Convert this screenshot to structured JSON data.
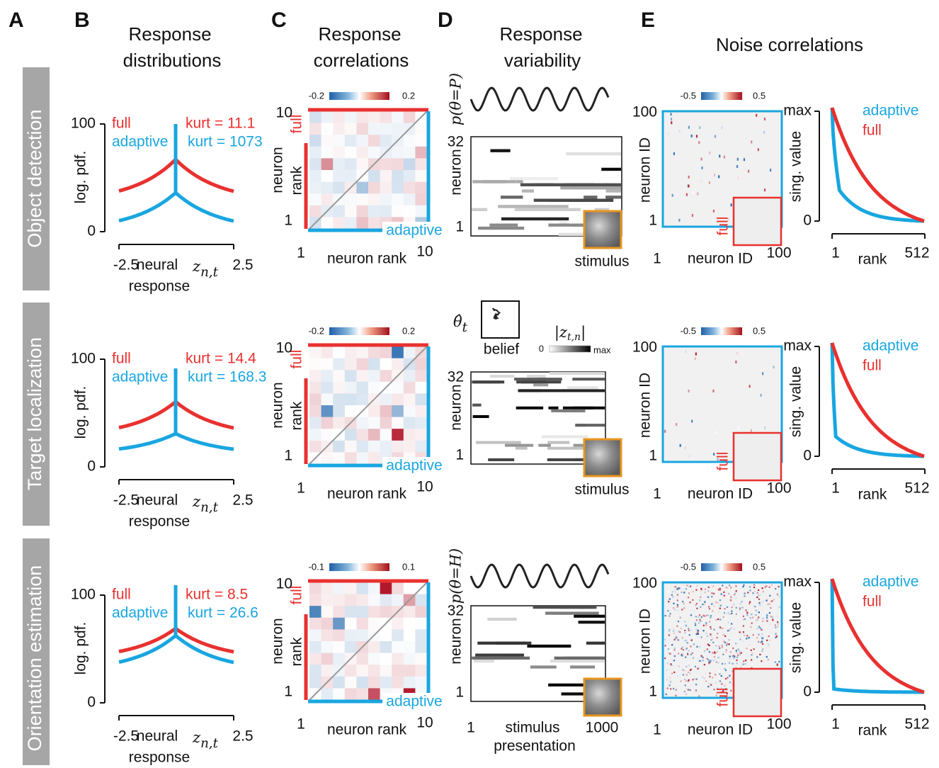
{
  "figure": {
    "panels": [
      "A",
      "B",
      "C",
      "D",
      "E"
    ],
    "titles": {
      "B": [
        "Response",
        "distributions"
      ],
      "C": [
        "Response",
        "correlations"
      ],
      "D": [
        "Response",
        "variability"
      ],
      "E": [
        "Noise correlations"
      ]
    },
    "rows": [
      {
        "task": "Object detection",
        "distributions": {
          "full": "full",
          "adaptive": "adaptive",
          "kurt_full": "kurt = 11.1",
          "kurt_adaptive": "kurt = 1073",
          "yticks": [
            100,
            0
          ],
          "ylabel": "log. pdf.",
          "xticks": [
            -2.5,
            2.5
          ],
          "xlabel": [
            "neural",
            "response"
          ],
          "symbol": {
            "base": "z",
            "sub": "n,t"
          }
        },
        "correlations": {
          "colorbar": [
            -0.2,
            0.2
          ],
          "full": "full",
          "adaptive": "adaptive",
          "yticks": [
            10,
            1
          ],
          "ylabel": [
            "neuron",
            "rank"
          ],
          "xticks": [
            1,
            10
          ],
          "xlabel": "neuron rank"
        },
        "variability": {
          "prior": "p(θ=P)",
          "yticks": [
            32,
            1
          ],
          "ylabel": "neuron",
          "image_label": "stimulus"
        },
        "noise": {
          "colorbar": [
            -0.5,
            0.5
          ],
          "inset_label": "full",
          "yticks": [
            100,
            1
          ],
          "ylabel": "neuron ID",
          "xticks": [
            1,
            100
          ],
          "xlabel": "neuron ID",
          "sv": {
            "yticks": [
              "max",
              0
            ],
            "ylabel": "sing. value",
            "legend": [
              "adaptive",
              "full"
            ],
            "xticks": [
              1,
              512
            ],
            "xlabel": "rank"
          }
        }
      },
      {
        "task": "Target localization",
        "distributions": {
          "full": "full",
          "adaptive": "adaptive",
          "kurt_full": "kurt = 14.4",
          "kurt_adaptive": "kurt = 168.3",
          "yticks": [
            100,
            0
          ],
          "ylabel": "log. pdf.",
          "xticks": [
            -2.5,
            2.5
          ],
          "xlabel": [
            "neural",
            "response"
          ],
          "symbol": {
            "base": "z",
            "sub": "n,t"
          }
        },
        "correlations": {
          "colorbar": [
            -0.2,
            0.2
          ],
          "full": "full",
          "adaptive": "adaptive",
          "yticks": [
            10,
            1
          ],
          "ylabel": [
            "neuron",
            "rank"
          ],
          "xticks": [
            1,
            10
          ],
          "xlabel": "neuron rank"
        },
        "variability": {
          "belief_symbol": {
            "base": "θ̂",
            "sub": "t"
          },
          "belief_label": "belief",
          "magnitude": {
            "symbol": {
              "base": "|z",
              "sub": "t,n",
              "end": "|"
            },
            "ticks": [
              0,
              "max"
            ]
          },
          "yticks": [
            32,
            1
          ],
          "ylabel": "neuron",
          "image_label": "stimulus"
        },
        "noise": {
          "colorbar": [
            -0.5,
            0.5
          ],
          "inset_label": "full",
          "yticks": [
            100,
            1
          ],
          "ylabel": "neuron ID",
          "xticks": [
            1,
            100
          ],
          "xlabel": "neuron ID",
          "sv": {
            "yticks": [
              "max",
              0
            ],
            "ylabel": "sing. value",
            "legend": [
              "adaptive",
              "full"
            ],
            "xticks": [
              1,
              512
            ],
            "xlabel": "rank"
          }
        }
      },
      {
        "task": "Orientation estimation",
        "distributions": {
          "full": "full",
          "adaptive": "adaptive",
          "kurt_full": "kurt = 8.5",
          "kurt_adaptive": "kurt = 26.6",
          "yticks": [
            100,
            0
          ],
          "ylabel": "log. pdf.",
          "xticks": [
            -2.5,
            2.5
          ],
          "xlabel": [
            "neural",
            "response"
          ],
          "symbol": {
            "base": "z",
            "sub": "n,t"
          }
        },
        "correlations": {
          "colorbar": [
            -0.1,
            0.1
          ],
          "full": "full",
          "adaptive": "adaptive",
          "yticks": [
            10,
            1
          ],
          "ylabel": [
            "neuron",
            "rank"
          ],
          "xticks": [
            1,
            10
          ],
          "xlabel": "neuron rank"
        },
        "variability": {
          "prior": "p(θ=H)",
          "yticks": [
            32,
            1
          ],
          "ylabel": "neuron",
          "xticks": [
            1,
            1000
          ],
          "xlabel": [
            "stimulus",
            "presentation"
          ]
        },
        "noise": {
          "colorbar": [
            -0.5,
            0.5
          ],
          "inset_label": "full",
          "yticks": [
            100,
            1
          ],
          "ylabel": "neuron ID",
          "xticks": [
            1,
            100
          ],
          "xlabel": "neuron ID",
          "sv": {
            "yticks": [
              "max",
              0
            ],
            "ylabel": "sing. value",
            "legend": [
              "adaptive",
              "full"
            ],
            "xticks": [
              1,
              512
            ],
            "xlabel": "rank"
          }
        }
      }
    ]
  }
}
